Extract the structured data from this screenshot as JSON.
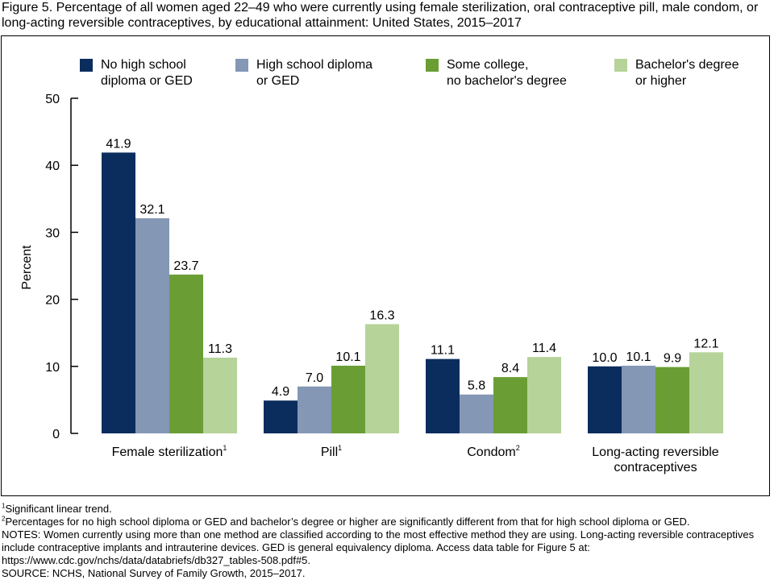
{
  "title": "Figure 5. Percentage of all women aged 22–49 who were currently using female sterilization, oral contraceptive pill, male condom, or long-acting reversible contraceptives, by educational attainment: United States, 2015–2017",
  "chart_data": {
    "type": "bar",
    "ylabel": "Percent",
    "ylim": [
      0,
      50
    ],
    "yticks": [
      "0",
      "10",
      "20",
      "30",
      "40",
      "50"
    ],
    "grid": false,
    "legend_position": "top",
    "categories": [
      {
        "label": "Female sterilization",
        "sup": "1"
      },
      {
        "label": "Pill",
        "sup": "1"
      },
      {
        "label": "Condom",
        "sup": "2"
      },
      {
        "label": "Long-acting reversible contraceptives",
        "sup": ""
      }
    ],
    "series": [
      {
        "name": "No high school diploma or GED",
        "color": "#0b2d5e",
        "values": [
          41.9,
          4.9,
          11.1,
          10.0
        ],
        "labels": [
          "41.9",
          "4.9",
          "11.1",
          "10.0"
        ]
      },
      {
        "name": "High school diploma or GED",
        "color": "#8497b4",
        "values": [
          32.1,
          7.0,
          5.8,
          10.1
        ],
        "labels": [
          "32.1",
          "7.0",
          "5.8",
          "10.1"
        ]
      },
      {
        "name": "Some college, no bachelor's degree",
        "color": "#6a9e35",
        "values": [
          23.7,
          10.1,
          8.4,
          9.9
        ],
        "labels": [
          "23.7",
          "10.1",
          "8.4",
          "9.9"
        ]
      },
      {
        "name": "Bachelor's degree or higher",
        "color": "#b6d39a",
        "values": [
          11.3,
          16.3,
          11.4,
          12.1
        ],
        "labels": [
          "11.3",
          "16.3",
          "11.4",
          "12.1"
        ]
      }
    ]
  },
  "legend": [
    {
      "line1": "No high school",
      "line2": "diploma or GED"
    },
    {
      "line1": "High school diploma",
      "line2": "or GED"
    },
    {
      "line1": "Some college,",
      "line2": "no bachelor's degree"
    },
    {
      "line1": "Bachelor's degree",
      "line2": "or higher"
    }
  ],
  "notes": {
    "footnote1_sup": "1",
    "footnote1": "Significant linear trend.",
    "footnote2_sup": "2",
    "footnote2": "Percentages for no high school diploma or GED and bachelor’s degree or higher are significantly different from that for high school diploma or GED.",
    "notes_text": "NOTES: Women currently using more than one method are classified according to the most effective method they are using. Long-acting reversible contraceptives include contraceptive implants and intrauterine devices. GED is general equivalency diploma. Access data table for Figure 5 at:",
    "url": "https://www.cdc.gov/nchs/data/databriefs/db327_tables-508.pdf#5.",
    "source": "SOURCE: NCHS, National Survey of Family Growth, 2015–2017."
  }
}
